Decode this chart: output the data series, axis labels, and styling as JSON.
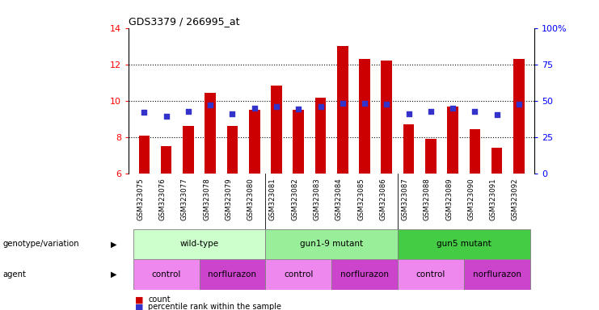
{
  "title": "GDS3379 / 266995_at",
  "samples": [
    "GSM323075",
    "GSM323076",
    "GSM323077",
    "GSM323078",
    "GSM323079",
    "GSM323080",
    "GSM323081",
    "GSM323082",
    "GSM323083",
    "GSM323084",
    "GSM323085",
    "GSM323086",
    "GSM323087",
    "GSM323088",
    "GSM323089",
    "GSM323090",
    "GSM323091",
    "GSM323092"
  ],
  "counts": [
    8.1,
    7.5,
    8.6,
    10.45,
    8.6,
    9.5,
    10.85,
    9.5,
    10.15,
    13.0,
    12.3,
    12.2,
    8.7,
    7.9,
    9.7,
    8.45,
    7.4,
    12.3
  ],
  "percentiles": [
    9.35,
    9.15,
    9.4,
    9.75,
    9.3,
    9.6,
    9.7,
    9.55,
    9.7,
    9.85,
    9.85,
    9.8,
    9.3,
    9.4,
    9.6,
    9.4,
    9.25,
    9.8
  ],
  "bar_color": "#cc0000",
  "dot_color": "#3333cc",
  "ylim_left": [
    6,
    14
  ],
  "ylim_right": [
    0,
    100
  ],
  "yticks_left": [
    6,
    8,
    10,
    12,
    14
  ],
  "yticks_right": [
    0,
    25,
    50,
    75,
    100
  ],
  "ytick_labels_right": [
    "0",
    "25",
    "50",
    "75",
    "100%"
  ],
  "genotype_groups": [
    {
      "label": "wild-type",
      "start": 0,
      "end": 5,
      "color": "#ccffcc"
    },
    {
      "label": "gun1-9 mutant",
      "start": 6,
      "end": 11,
      "color": "#99ee99"
    },
    {
      "label": "gun5 mutant",
      "start": 12,
      "end": 17,
      "color": "#44cc44"
    }
  ],
  "agent_groups": [
    {
      "label": "control",
      "start": 0,
      "end": 2,
      "color": "#ee88ee"
    },
    {
      "label": "norflurazon",
      "start": 3,
      "end": 5,
      "color": "#cc44cc"
    },
    {
      "label": "control",
      "start": 6,
      "end": 8,
      "color": "#ee88ee"
    },
    {
      "label": "norflurazon",
      "start": 9,
      "end": 11,
      "color": "#cc44cc"
    },
    {
      "label": "control",
      "start": 12,
      "end": 14,
      "color": "#ee88ee"
    },
    {
      "label": "norflurazon",
      "start": 15,
      "end": 17,
      "color": "#cc44cc"
    }
  ],
  "bar_width": 0.5,
  "ylim_base": 6,
  "background_color": "#ffffff",
  "xtick_bg": "#dddddd"
}
